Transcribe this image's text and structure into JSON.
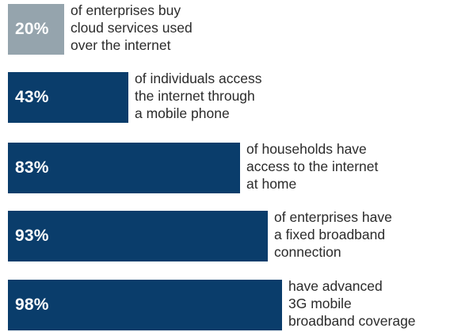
{
  "chart_data": {
    "type": "bar",
    "orientation": "horizontal",
    "xlim": [
      0,
      100
    ],
    "colors": {
      "first": "#95a4ad",
      "rest": "#0a3d6b"
    },
    "rows": [
      {
        "value": 20,
        "label": "20%",
        "description": [
          "of enterprises buy",
          "cloud services used",
          "over the internet"
        ]
      },
      {
        "value": 43,
        "label": "43%",
        "description": [
          "of individuals access",
          "the internet through",
          "a mobile phone"
        ]
      },
      {
        "value": 83,
        "label": "83%",
        "description": [
          "of households have",
          "access to the internet",
          "at home"
        ]
      },
      {
        "value": 93,
        "label": "93%",
        "description": [
          "of enterprises have",
          "a fixed broadband",
          "connection"
        ]
      },
      {
        "value": 98,
        "label": "98%",
        "description": [
          "have advanced",
          "3G mobile",
          "broadband coverage"
        ]
      }
    ]
  }
}
